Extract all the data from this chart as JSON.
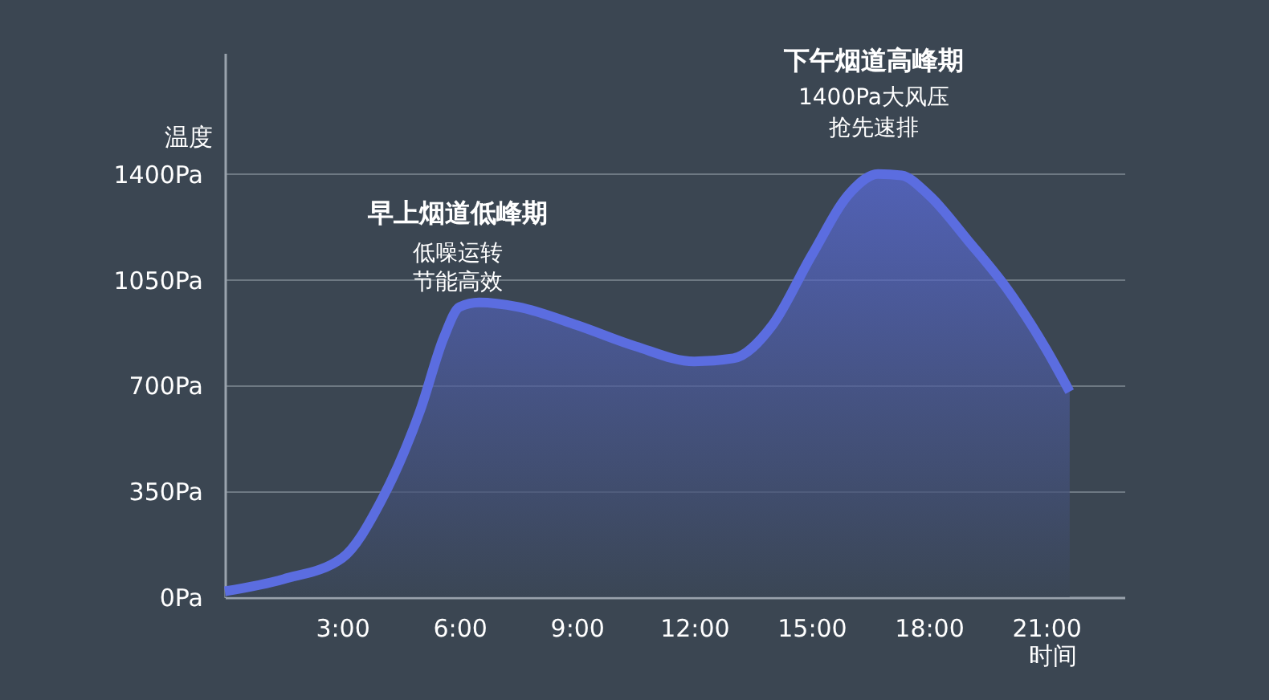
{
  "chart_data": {
    "type": "area",
    "xlabel": "时间",
    "ylabel": "温度",
    "x": [
      0,
      1.5,
      3,
      4,
      5,
      5.6,
      6,
      6.5,
      7.5,
      9,
      10.5,
      12,
      13,
      14,
      15,
      16,
      16.7,
      17.3,
      18,
      19,
      20,
      21,
      21.6
    ],
    "series": [
      {
        "color": "#5b6de0",
        "values": [
          20,
          60,
          130,
          320,
          620,
          860,
          960,
          975,
          960,
          900,
          830,
          780,
          790,
          900,
          1130,
          1340,
          1400,
          1395,
          1330,
          1180,
          1020,
          820,
          680
        ]
      }
    ],
    "xlim": [
      0,
      23
    ],
    "ylim": [
      0,
      1800
    ],
    "xticks": [
      {
        "value": 3,
        "label": "3:00"
      },
      {
        "value": 6,
        "label": "6:00"
      },
      {
        "value": 9,
        "label": "9:00"
      },
      {
        "value": 12,
        "label": "12:00"
      },
      {
        "value": 15,
        "label": "15:00"
      },
      {
        "value": 18,
        "label": "18:00"
      },
      {
        "value": 21,
        "label": "21:00"
      }
    ],
    "yticks": [
      {
        "value": 0,
        "label": "0Pa"
      },
      {
        "value": 350,
        "label": "350Pa"
      },
      {
        "value": 700,
        "label": "700Pa"
      },
      {
        "value": 1050,
        "label": "1050Pa"
      },
      {
        "value": 1400,
        "label": "1400Pa"
      }
    ],
    "grid": "y",
    "annotations": [
      "早上烟道低峰期",
      "低噪运转",
      "节能高效",
      "下午烟道高峰期",
      "1400Pa大风压",
      "抢先速排"
    ]
  }
}
